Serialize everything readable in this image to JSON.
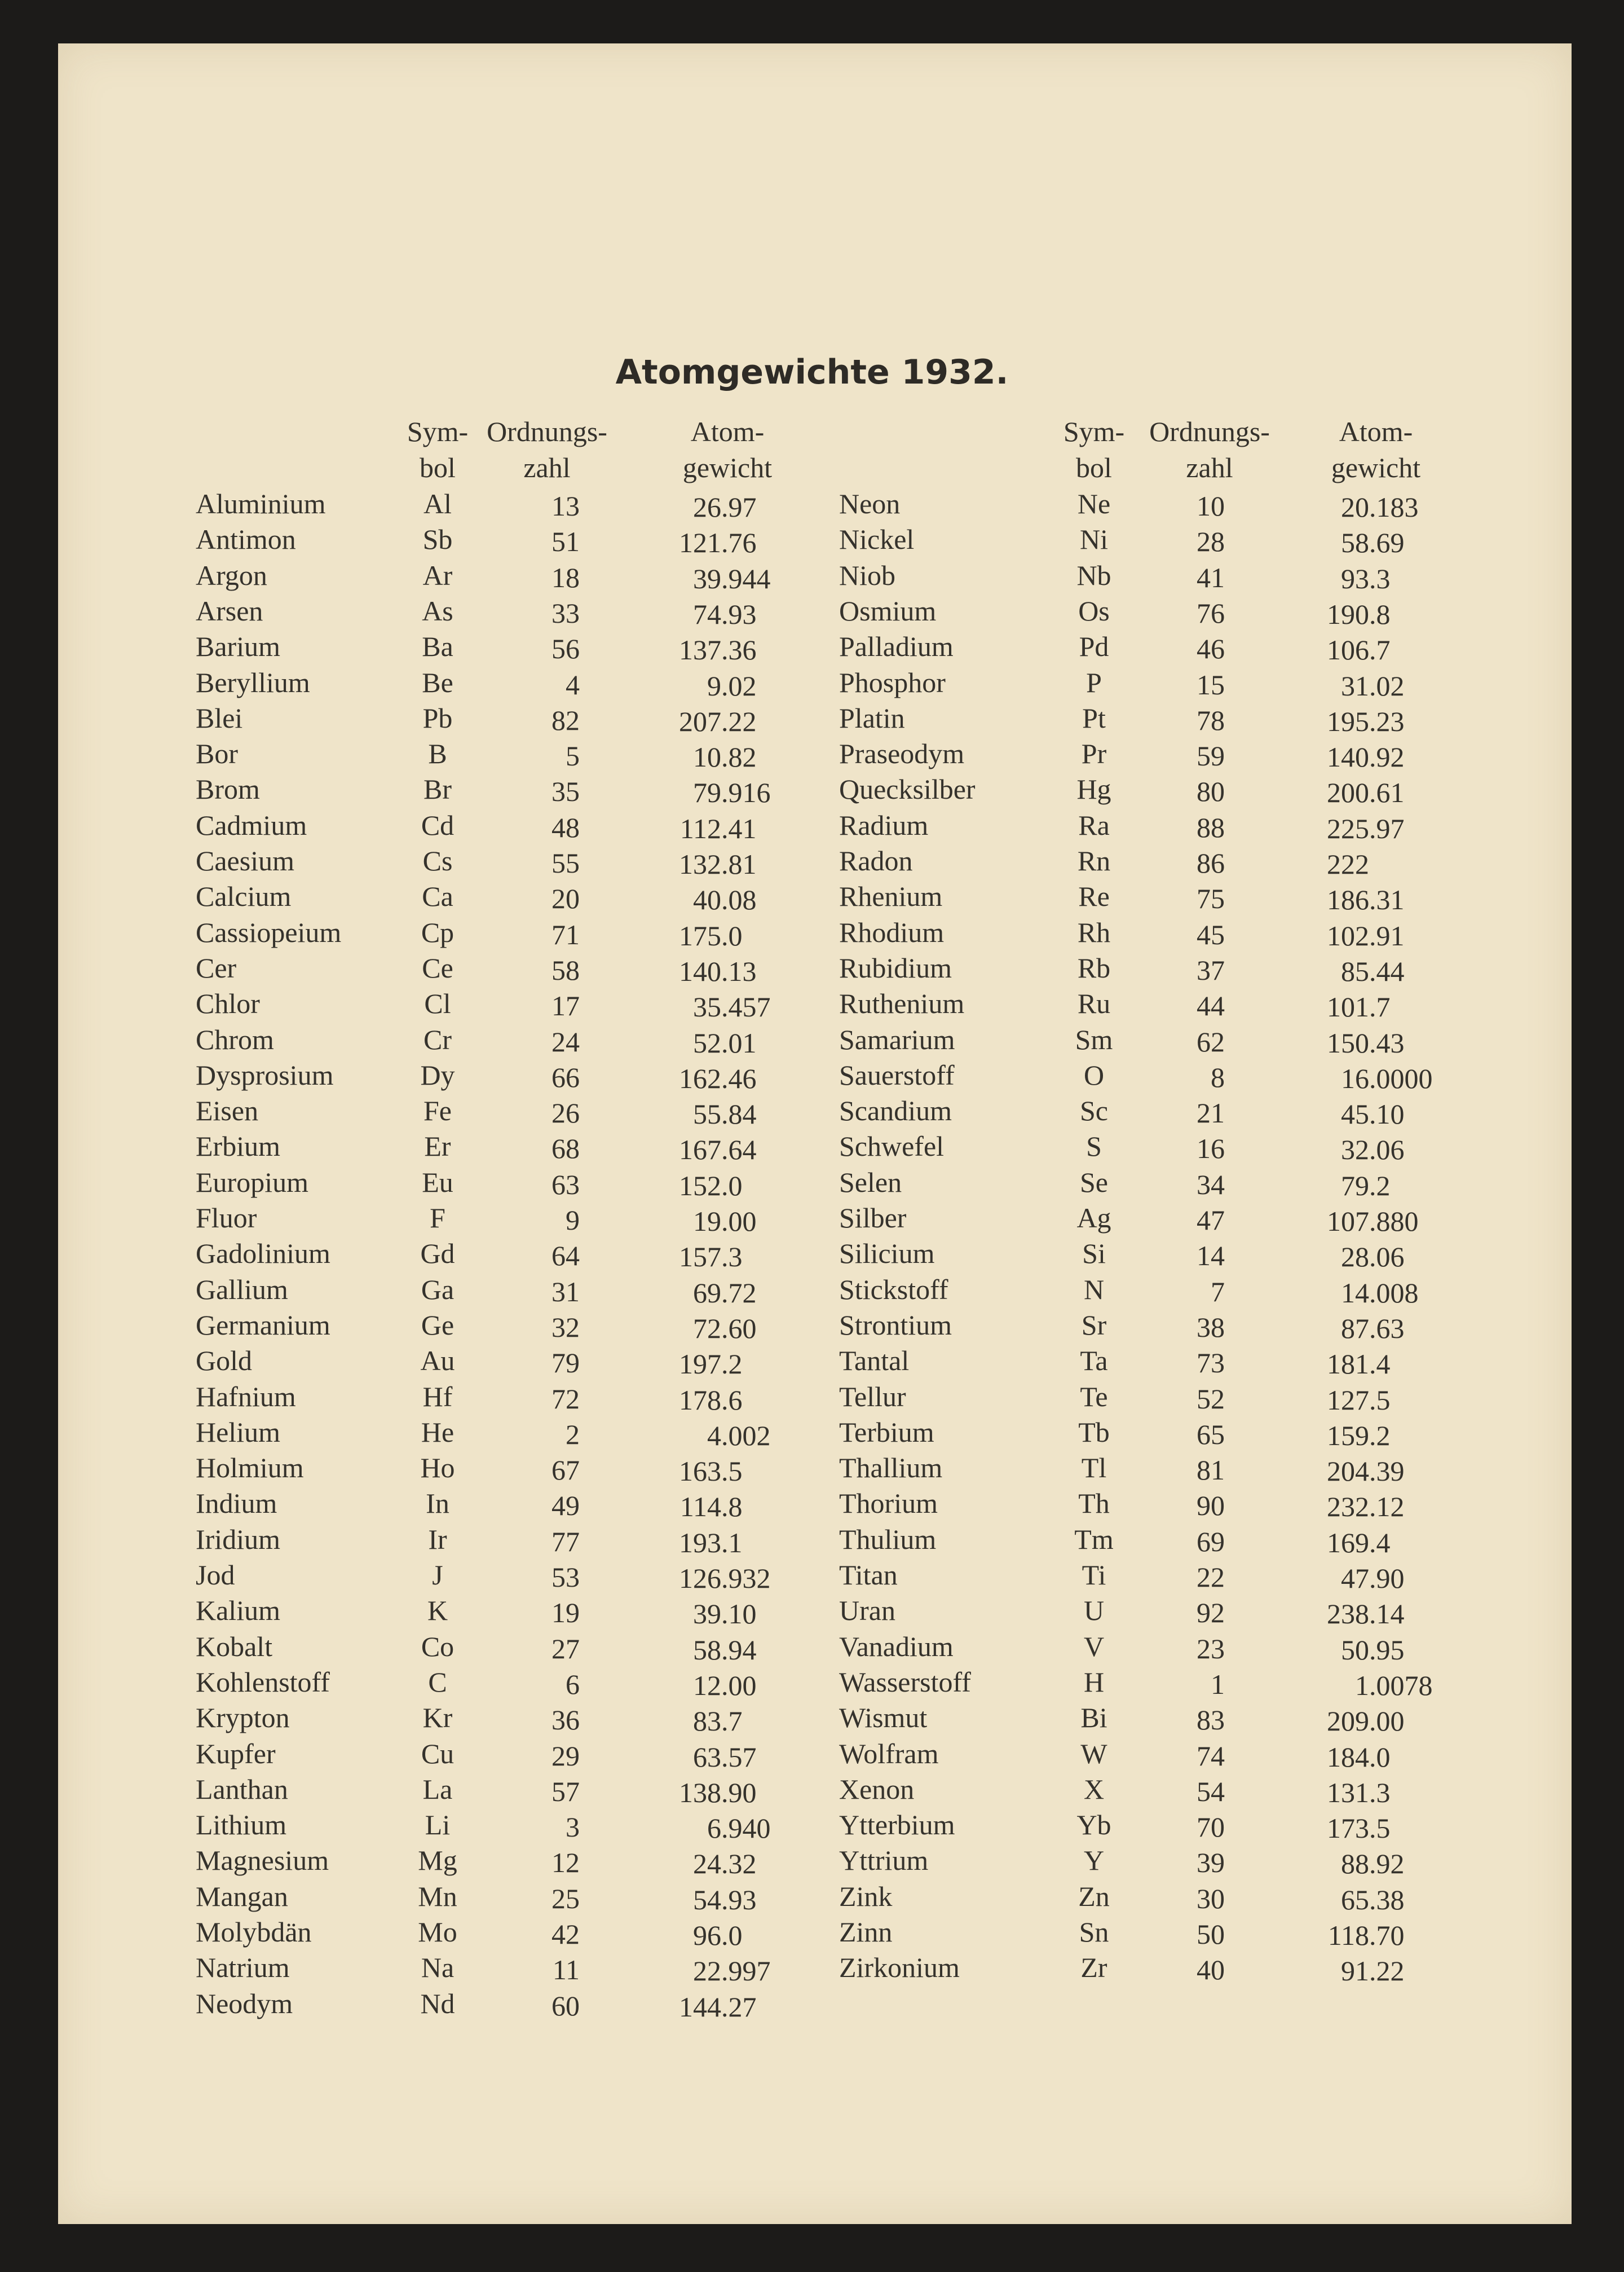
{
  "title": "Atomgewichte 1932.",
  "headers": {
    "symbol": [
      "Sym-",
      "bol"
    ],
    "number": [
      "Ordnungs-",
      "zahl"
    ],
    "weight": [
      "Atom-",
      "gewicht"
    ]
  },
  "left_table": [
    [
      "Aluminium",
      "Al",
      "13",
      "26.97"
    ],
    [
      "Antimon",
      "Sb",
      "51",
      "121.76"
    ],
    [
      "Argon",
      "Ar",
      "18",
      "39.944"
    ],
    [
      "Arsen",
      "As",
      "33",
      "74.93"
    ],
    [
      "Barium",
      "Ba",
      "56",
      "137.36"
    ],
    [
      "Beryllium",
      "Be",
      "4",
      "9.02"
    ],
    [
      "Blei",
      "Pb",
      "82",
      "207.22"
    ],
    [
      "Bor",
      "B",
      "5",
      "10.82"
    ],
    [
      "Brom",
      "Br",
      "35",
      "79.916"
    ],
    [
      "Cadmium",
      "Cd",
      "48",
      "112.41"
    ],
    [
      "Caesium",
      "Cs",
      "55",
      "132.81"
    ],
    [
      "Calcium",
      "Ca",
      "20",
      "40.08"
    ],
    [
      "Cassiopeium",
      "Cp",
      "71",
      "175.0"
    ],
    [
      "Cer",
      "Ce",
      "58",
      "140.13"
    ],
    [
      "Chlor",
      "Cl",
      "17",
      "35.457"
    ],
    [
      "Chrom",
      "Cr",
      "24",
      "52.01"
    ],
    [
      "Dysprosium",
      "Dy",
      "66",
      "162.46"
    ],
    [
      "Eisen",
      "Fe",
      "26",
      "55.84"
    ],
    [
      "Erbium",
      "Er",
      "68",
      "167.64"
    ],
    [
      "Europium",
      "Eu",
      "63",
      "152.0"
    ],
    [
      "Fluor",
      "F",
      "9",
      "19.00"
    ],
    [
      "Gadolinium",
      "Gd",
      "64",
      "157.3"
    ],
    [
      "Gallium",
      "Ga",
      "31",
      "69.72"
    ],
    [
      "Germanium",
      "Ge",
      "32",
      "72.60"
    ],
    [
      "Gold",
      "Au",
      "79",
      "197.2"
    ],
    [
      "Hafnium",
      "Hf",
      "72",
      "178.6"
    ],
    [
      "Helium",
      "He",
      "2",
      "4.002"
    ],
    [
      "Holmium",
      "Ho",
      "67",
      "163.5"
    ],
    [
      "Indium",
      "In",
      "49",
      "114.8"
    ],
    [
      "Iridium",
      "Ir",
      "77",
      "193.1"
    ],
    [
      "Jod",
      "J",
      "53",
      "126.932"
    ],
    [
      "Kalium",
      "K",
      "19",
      "39.10"
    ],
    [
      "Kobalt",
      "Co",
      "27",
      "58.94"
    ],
    [
      "Kohlenstoff",
      "C",
      "6",
      "12.00"
    ],
    [
      "Krypton",
      "Kr",
      "36",
      "83.7"
    ],
    [
      "Kupfer",
      "Cu",
      "29",
      "63.57"
    ],
    [
      "Lanthan",
      "La",
      "57",
      "138.90"
    ],
    [
      "Lithium",
      "Li",
      "3",
      "6.940"
    ],
    [
      "Magnesium",
      "Mg",
      "12",
      "24.32"
    ],
    [
      "Mangan",
      "Mn",
      "25",
      "54.93"
    ],
    [
      "Molybdän",
      "Mo",
      "42",
      "96.0"
    ],
    [
      "Natrium",
      "Na",
      "11",
      "22.997"
    ],
    [
      "Neodym",
      "Nd",
      "60",
      "144.27"
    ]
  ],
  "right_table": [
    [
      "Neon",
      "Ne",
      "10",
      "20.183"
    ],
    [
      "Nickel",
      "Ni",
      "28",
      "58.69"
    ],
    [
      "Niob",
      "Nb",
      "41",
      "93.3"
    ],
    [
      "Osmium",
      "Os",
      "76",
      "190.8"
    ],
    [
      "Palladium",
      "Pd",
      "46",
      "106.7"
    ],
    [
      "Phosphor",
      "P",
      "15",
      "31.02"
    ],
    [
      "Platin",
      "Pt",
      "78",
      "195.23"
    ],
    [
      "Praseodym",
      "Pr",
      "59",
      "140.92"
    ],
    [
      "Quecksilber",
      "Hg",
      "80",
      "200.61"
    ],
    [
      "Radium",
      "Ra",
      "88",
      "225.97"
    ],
    [
      "Radon",
      "Rn",
      "86",
      "222"
    ],
    [
      "Rhenium",
      "Re",
      "75",
      "186.31"
    ],
    [
      "Rhodium",
      "Rh",
      "45",
      "102.91"
    ],
    [
      "Rubidium",
      "Rb",
      "37",
      "85.44"
    ],
    [
      "Ruthenium",
      "Ru",
      "44",
      "101.7"
    ],
    [
      "Samarium",
      "Sm",
      "62",
      "150.43"
    ],
    [
      "Sauerstoff",
      "O",
      "8",
      "16.0000"
    ],
    [
      "Scandium",
      "Sc",
      "21",
      "45.10"
    ],
    [
      "Schwefel",
      "S",
      "16",
      "32.06"
    ],
    [
      "Selen",
      "Se",
      "34",
      "79.2"
    ],
    [
      "Silber",
      "Ag",
      "47",
      "107.880"
    ],
    [
      "Silicium",
      "Si",
      "14",
      "28.06"
    ],
    [
      "Stickstoff",
      "N",
      "7",
      "14.008"
    ],
    [
      "Strontium",
      "Sr",
      "38",
      "87.63"
    ],
    [
      "Tantal",
      "Ta",
      "73",
      "181.4"
    ],
    [
      "Tellur",
      "Te",
      "52",
      "127.5"
    ],
    [
      "Terbium",
      "Tb",
      "65",
      "159.2"
    ],
    [
      "Thallium",
      "Tl",
      "81",
      "204.39"
    ],
    [
      "Thorium",
      "Th",
      "90",
      "232.12"
    ],
    [
      "Thulium",
      "Tm",
      "69",
      "169.4"
    ],
    [
      "Titan",
      "Ti",
      "22",
      "47.90"
    ],
    [
      "Uran",
      "U",
      "92",
      "238.14"
    ],
    [
      "Vanadium",
      "V",
      "23",
      "50.95"
    ],
    [
      "Wasserstoff",
      "H",
      "1",
      "1.0078"
    ],
    [
      "Wismut",
      "Bi",
      "83",
      "209.00"
    ],
    [
      "Wolfram",
      "W",
      "74",
      "184.0"
    ],
    [
      "Xenon",
      "X",
      "54",
      "131.3"
    ],
    [
      "Ytterbium",
      "Yb",
      "70",
      "173.5"
    ],
    [
      "Yttrium",
      "Y",
      "39",
      "88.92"
    ],
    [
      "Zink",
      "Zn",
      "30",
      "65.38"
    ],
    [
      "Zinn",
      "Sn",
      "50",
      "118.70"
    ],
    [
      "Zirkonium",
      "Zr",
      "40",
      "91.22"
    ]
  ],
  "colors": {
    "paper": "#efe4c9",
    "ink": "#35322c",
    "background": "#1c1b19"
  }
}
